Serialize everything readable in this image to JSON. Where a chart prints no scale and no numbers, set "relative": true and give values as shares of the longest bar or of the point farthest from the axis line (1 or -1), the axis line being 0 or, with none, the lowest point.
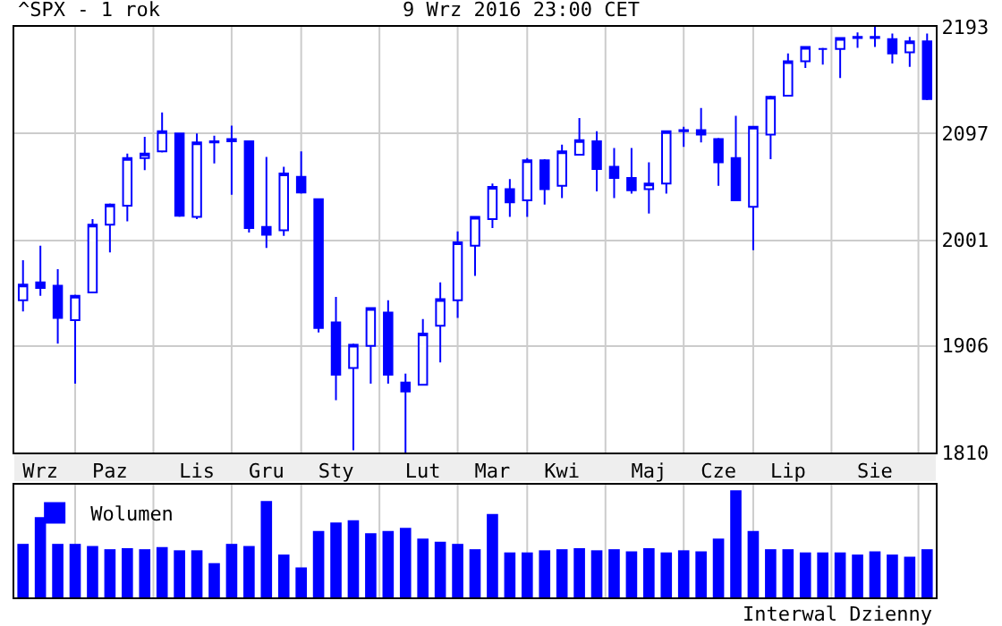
{
  "chart_data": [
    {
      "type": "candlestick",
      "title": "^SPX - 1 rok",
      "subtitle": "9 Wrz 2016 23:00 CET",
      "categories": [
        null,
        "Wrz",
        null,
        null,
        null,
        "Paz",
        null,
        null,
        null,
        null,
        "Lis",
        null,
        null,
        null,
        "Gru",
        null,
        null,
        null,
        "Sty",
        null,
        null,
        null,
        null,
        "Lut",
        null,
        null,
        null,
        "Mar",
        null,
        null,
        null,
        "Kwi",
        null,
        null,
        null,
        null,
        "Maj",
        null,
        null,
        null,
        "Cze",
        null,
        null,
        null,
        "Lip",
        null,
        null,
        null,
        null,
        "Sie",
        null,
        null,
        null
      ],
      "series": [
        {
          "color": "#0000ff",
          "ohlc": [
            [
              1947,
              1983,
              1937,
              1961
            ],
            [
              1963,
              1996,
              1951,
              1958
            ],
            [
              1960,
              1975,
              1908,
              1931
            ],
            [
              1929,
              1952,
              1872,
              1951
            ],
            [
              1954,
              2020,
              1954,
              2015
            ],
            [
              2015,
              2034,
              1990,
              2033
            ],
            [
              2032,
              2079,
              2018,
              2075
            ],
            [
              2075,
              2094,
              2064,
              2079
            ],
            [
              2081,
              2116,
              2080,
              2099
            ],
            [
              2097,
              2097,
              2022,
              2023
            ],
            [
              2022,
              2097,
              2020,
              2089
            ],
            [
              2089,
              2095,
              2070,
              2090
            ],
            [
              2090,
              2104,
              2042,
              2092
            ],
            [
              2090,
              2090,
              2008,
              2012
            ],
            [
              2013,
              2076,
              1994,
              2006
            ],
            [
              2010,
              2067,
              2005,
              2061
            ],
            [
              2058,
              2081,
              2043,
              2044
            ],
            [
              2038,
              2038,
              1918,
              1922
            ],
            [
              1927,
              1950,
              1857,
              1880
            ],
            [
              1886,
              1908,
              1812,
              1907
            ],
            [
              1906,
              1940,
              1872,
              1940
            ],
            [
              1936,
              1947,
              1872,
              1880
            ],
            [
              1873,
              1881,
              1810,
              1865
            ],
            [
              1871,
              1930,
              1871,
              1917
            ],
            [
              1924,
              1963,
              1891,
              1948
            ],
            [
              1947,
              2009,
              1931,
              1999
            ],
            [
              1996,
              2022,
              1969,
              2022
            ],
            [
              2020,
              2052,
              2012,
              2049
            ],
            [
              2047,
              2056,
              2022,
              2035
            ],
            [
              2037,
              2075,
              2022,
              2073
            ],
            [
              2073,
              2074,
              2033,
              2047
            ],
            [
              2050,
              2087,
              2039,
              2081
            ],
            [
              2078,
              2111,
              2078,
              2091
            ],
            [
              2090,
              2099,
              2045,
              2065
            ],
            [
              2067,
              2084,
              2039,
              2057
            ],
            [
              2057,
              2084,
              2043,
              2046
            ],
            [
              2047,
              2071,
              2025,
              2052
            ],
            [
              2052,
              2099,
              2043,
              2099
            ],
            [
              2100,
              2103,
              2085,
              2099
            ],
            [
              2100,
              2120,
              2089,
              2096
            ],
            [
              2092,
              2093,
              2050,
              2071
            ],
            [
              2075,
              2113,
              2037,
              2037
            ],
            [
              2031,
              2103,
              1992,
              2103
            ],
            [
              2096,
              2131,
              2074,
              2130
            ],
            [
              2131,
              2169,
              2131,
              2162
            ],
            [
              2162,
              2175,
              2156,
              2175
            ],
            [
              2173,
              2174,
              2159,
              2173
            ],
            [
              2173,
              2183,
              2147,
              2183
            ],
            [
              2183,
              2188,
              2174,
              2184
            ],
            [
              2183,
              2193,
              2175,
              2184
            ],
            [
              2182,
              2187,
              2160,
              2169
            ],
            [
              2170,
              2184,
              2157,
              2180
            ],
            [
              2180,
              2187,
              2127,
              2128
            ]
          ]
        }
      ],
      "ylim": [
        1810,
        2193
      ],
      "yticks": [
        1810,
        1906,
        2001,
        2097,
        2193
      ],
      "grid": true
    },
    {
      "type": "bar",
      "relative": true,
      "legend": "top left",
      "grid": "x",
      "annotations": [
        "Interwal Dzienny"
      ],
      "categories": [
        null,
        null,
        null,
        null,
        null,
        null,
        null,
        null,
        null,
        null,
        null,
        null,
        null,
        null,
        null,
        null,
        null,
        null,
        null,
        null,
        null,
        null,
        null,
        null,
        null,
        null,
        null,
        null,
        null,
        null,
        null,
        null,
        null,
        null,
        null,
        null,
        null,
        null,
        null,
        null,
        null,
        null,
        null,
        null,
        null,
        null,
        null,
        null,
        null,
        null,
        null,
        null,
        null
      ],
      "series": [
        {
          "name": "Wolumen",
          "color": "#0000ff",
          "values": [
            0.5,
            0.75,
            0.5,
            0.5,
            0.48,
            0.45,
            0.46,
            0.45,
            0.47,
            0.44,
            0.44,
            0.32,
            0.5,
            0.48,
            0.9,
            0.4,
            0.28,
            0.62,
            0.7,
            0.72,
            0.6,
            0.62,
            0.65,
            0.55,
            0.52,
            0.5,
            0.45,
            0.78,
            0.42,
            0.42,
            0.44,
            0.45,
            0.46,
            0.44,
            0.45,
            0.43,
            0.46,
            0.42,
            0.44,
            0.43,
            0.55,
            1,
            0.62,
            0.45,
            0.45,
            0.42,
            0.42,
            0.42,
            0.4,
            0.43,
            0.4,
            0.38,
            0.45
          ]
        }
      ]
    }
  ]
}
